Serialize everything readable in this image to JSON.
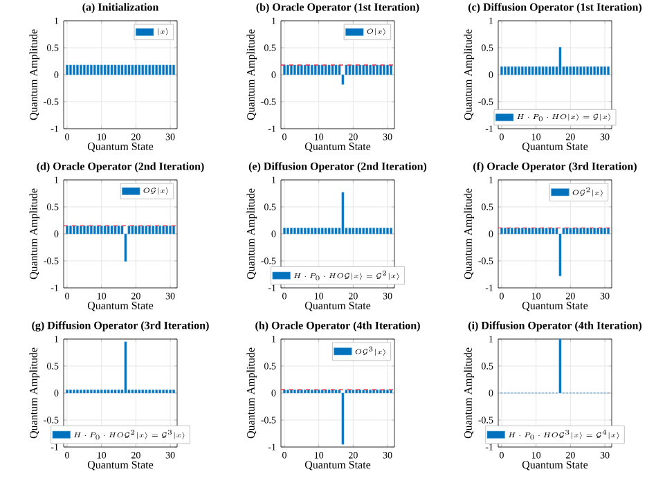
{
  "chart_data": [
    {
      "type": "bar",
      "title": "(a) Initialization",
      "xlabel": "Quantum State",
      "ylabel": "Quantum Amplitude",
      "x": [
        0,
        1,
        2,
        3,
        4,
        5,
        6,
        7,
        8,
        9,
        10,
        11,
        12,
        13,
        14,
        15,
        16,
        17,
        18,
        19,
        20,
        21,
        22,
        23,
        24,
        25,
        26,
        27,
        28,
        29,
        30,
        31
      ],
      "xlim": [
        -1,
        32
      ],
      "xticks": [
        0,
        10,
        20,
        30
      ],
      "ylim": [
        -1,
        1
      ],
      "yticks": [
        -1,
        -0.5,
        0,
        0.5,
        1
      ],
      "grid": true,
      "legend": "top right",
      "series": [
        {
          "name": "|x\\rangle",
          "color": "#0072bd",
          "values": [
            0.18,
            0.18,
            0.18,
            0.18,
            0.18,
            0.18,
            0.18,
            0.18,
            0.18,
            0.18,
            0.18,
            0.18,
            0.18,
            0.18,
            0.18,
            0.18,
            0.18,
            0.18,
            0.18,
            0.18,
            0.18,
            0.18,
            0.18,
            0.18,
            0.18,
            0.18,
            0.18,
            0.18,
            0.18,
            0.18,
            0.18,
            0.18
          ]
        }
      ]
    },
    {
      "type": "bar",
      "title": "(b) Oracle Operator (1st Iteration)",
      "xlabel": "Quantum State",
      "ylabel": "Quantum Amplitude",
      "x": [
        0,
        1,
        2,
        3,
        4,
        5,
        6,
        7,
        8,
        9,
        10,
        11,
        12,
        13,
        14,
        15,
        16,
        17,
        18,
        19,
        20,
        21,
        22,
        23,
        24,
        25,
        26,
        27,
        28,
        29,
        30,
        31
      ],
      "xlim": [
        -1,
        32
      ],
      "xticks": [
        0,
        10,
        20,
        30
      ],
      "ylim": [
        -1,
        1
      ],
      "yticks": [
        -1,
        -0.5,
        0,
        0.5,
        1
      ],
      "grid": true,
      "legend": "top right",
      "ref_lines": [
        {
          "axis": "y",
          "value": 0.18,
          "color": "#e8344a",
          "line_style": "dashed"
        }
      ],
      "series": [
        {
          "name": "O|x\\rangle",
          "color": "#0072bd",
          "values": [
            0.18,
            0.18,
            0.18,
            0.18,
            0.18,
            0.18,
            0.18,
            0.18,
            0.18,
            0.18,
            0.18,
            0.18,
            0.18,
            0.18,
            0.18,
            0.18,
            0.18,
            -0.18,
            0.18,
            0.18,
            0.18,
            0.18,
            0.18,
            0.18,
            0.18,
            0.18,
            0.18,
            0.18,
            0.18,
            0.18,
            0.18,
            0.18
          ]
        }
      ]
    },
    {
      "type": "bar",
      "title": "(c) Diffusion Operator (1st Iteration)",
      "xlabel": "Quantum State",
      "ylabel": "Quantum Amplitude",
      "x": [
        0,
        1,
        2,
        3,
        4,
        5,
        6,
        7,
        8,
        9,
        10,
        11,
        12,
        13,
        14,
        15,
        16,
        17,
        18,
        19,
        20,
        21,
        22,
        23,
        24,
        25,
        26,
        27,
        28,
        29,
        30,
        31
      ],
      "xlim": [
        -1,
        32
      ],
      "xticks": [
        0,
        10,
        20,
        30
      ],
      "ylim": [
        -1,
        1
      ],
      "yticks": [
        -1,
        -0.5,
        0,
        0.5,
        1
      ],
      "grid": true,
      "legend": "bottom",
      "series": [
        {
          "name": "H\\cdot P_0\\cdot HO|x\\rangle = \\mathcal{G}|x\\rangle",
          "color": "#0072bd",
          "values": [
            0.15,
            0.15,
            0.15,
            0.15,
            0.15,
            0.15,
            0.15,
            0.15,
            0.15,
            0.15,
            0.15,
            0.15,
            0.15,
            0.15,
            0.15,
            0.15,
            0.15,
            0.51,
            0.15,
            0.15,
            0.15,
            0.15,
            0.15,
            0.15,
            0.15,
            0.15,
            0.15,
            0.15,
            0.15,
            0.15,
            0.15,
            0.15
          ]
        }
      ]
    },
    {
      "type": "bar",
      "title": "(d) Oracle Operator (2nd Iteration)",
      "xlabel": "Quantum State",
      "ylabel": "Quantum Amplitude",
      "x": [
        0,
        1,
        2,
        3,
        4,
        5,
        6,
        7,
        8,
        9,
        10,
        11,
        12,
        13,
        14,
        15,
        16,
        17,
        18,
        19,
        20,
        21,
        22,
        23,
        24,
        25,
        26,
        27,
        28,
        29,
        30,
        31
      ],
      "xlim": [
        -1,
        32
      ],
      "xticks": [
        0,
        10,
        20,
        30
      ],
      "ylim": [
        -1,
        1
      ],
      "yticks": [
        -1,
        -0.5,
        0,
        0.5,
        1
      ],
      "grid": true,
      "legend": "top right",
      "ref_lines": [
        {
          "axis": "y",
          "value": 0.15,
          "color": "#e8344a",
          "line_style": "dashed"
        }
      ],
      "series": [
        {
          "name": "O\\mathcal{G}|x\\rangle",
          "color": "#0072bd",
          "values": [
            0.15,
            0.15,
            0.15,
            0.15,
            0.15,
            0.15,
            0.15,
            0.15,
            0.15,
            0.15,
            0.15,
            0.15,
            0.15,
            0.15,
            0.15,
            0.15,
            0.15,
            -0.51,
            0.15,
            0.15,
            0.15,
            0.15,
            0.15,
            0.15,
            0.15,
            0.15,
            0.15,
            0.15,
            0.15,
            0.15,
            0.15,
            0.15
          ]
        }
      ]
    },
    {
      "type": "bar",
      "title": "(e) Diffusion Operator (2nd Iteration)",
      "xlabel": "Quantum State",
      "ylabel": "Quantum Amplitude",
      "x": [
        0,
        1,
        2,
        3,
        4,
        5,
        6,
        7,
        8,
        9,
        10,
        11,
        12,
        13,
        14,
        15,
        16,
        17,
        18,
        19,
        20,
        21,
        22,
        23,
        24,
        25,
        26,
        27,
        28,
        29,
        30,
        31
      ],
      "xlim": [
        -1,
        32
      ],
      "xticks": [
        0,
        10,
        20,
        30
      ],
      "ylim": [
        -1,
        1
      ],
      "yticks": [
        -1,
        -0.5,
        0,
        0.5,
        1
      ],
      "grid": true,
      "legend": "bottom",
      "series": [
        {
          "name": "H\\cdot P_0\\cdot HO\\mathcal{G}|x\\rangle = \\mathcal{G}^2|x\\rangle",
          "color": "#0072bd",
          "values": [
            0.11,
            0.11,
            0.11,
            0.11,
            0.11,
            0.11,
            0.11,
            0.11,
            0.11,
            0.11,
            0.11,
            0.11,
            0.11,
            0.11,
            0.11,
            0.11,
            0.11,
            0.77,
            0.11,
            0.11,
            0.11,
            0.11,
            0.11,
            0.11,
            0.11,
            0.11,
            0.11,
            0.11,
            0.11,
            0.11,
            0.11,
            0.11
          ]
        }
      ]
    },
    {
      "type": "bar",
      "title": "(f) Oracle Operator (3rd Iteration)",
      "xlabel": "Quantum State",
      "ylabel": "Quantum Amplitude",
      "x": [
        0,
        1,
        2,
        3,
        4,
        5,
        6,
        7,
        8,
        9,
        10,
        11,
        12,
        13,
        14,
        15,
        16,
        17,
        18,
        19,
        20,
        21,
        22,
        23,
        24,
        25,
        26,
        27,
        28,
        29,
        30,
        31
      ],
      "xlim": [
        -1,
        32
      ],
      "xticks": [
        0,
        10,
        20,
        30
      ],
      "ylim": [
        -1,
        1
      ],
      "yticks": [
        -1,
        -0.5,
        0,
        0.5,
        1
      ],
      "grid": true,
      "legend": "top right",
      "ref_lines": [
        {
          "axis": "y",
          "value": 0.11,
          "color": "#e8344a",
          "line_style": "dashed"
        }
      ],
      "series": [
        {
          "name": "O\\mathcal{G}^2|x\\rangle",
          "color": "#0072bd",
          "values": [
            0.11,
            0.11,
            0.11,
            0.11,
            0.11,
            0.11,
            0.11,
            0.11,
            0.11,
            0.11,
            0.11,
            0.11,
            0.11,
            0.11,
            0.11,
            0.11,
            0.11,
            -0.78,
            0.11,
            0.11,
            0.11,
            0.11,
            0.11,
            0.11,
            0.11,
            0.11,
            0.11,
            0.11,
            0.11,
            0.11,
            0.11,
            0.11
          ]
        }
      ]
    },
    {
      "type": "bar",
      "title": "(g) Diffusion Operator (3rd Iteration)",
      "xlabel": "Quantum State",
      "ylabel": "Quantum Amplitude",
      "x": [
        0,
        1,
        2,
        3,
        4,
        5,
        6,
        7,
        8,
        9,
        10,
        11,
        12,
        13,
        14,
        15,
        16,
        17,
        18,
        19,
        20,
        21,
        22,
        23,
        24,
        25,
        26,
        27,
        28,
        29,
        30,
        31
      ],
      "xlim": [
        -1,
        32
      ],
      "xticks": [
        0,
        10,
        20,
        30
      ],
      "ylim": [
        -1,
        1
      ],
      "yticks": [
        -1,
        -0.5,
        0,
        0.5,
        1
      ],
      "grid": true,
      "legend": "bottom",
      "series": [
        {
          "name": "H\\cdot P_0\\cdot HO\\mathcal{G}^2|x\\rangle = \\mathcal{G}^3|x\\rangle",
          "color": "#0072bd",
          "values": [
            0.06,
            0.06,
            0.06,
            0.06,
            0.06,
            0.06,
            0.06,
            0.06,
            0.06,
            0.06,
            0.06,
            0.06,
            0.06,
            0.06,
            0.06,
            0.06,
            0.06,
            0.95,
            0.06,
            0.06,
            0.06,
            0.06,
            0.06,
            0.06,
            0.06,
            0.06,
            0.06,
            0.06,
            0.06,
            0.06,
            0.06,
            0.06
          ]
        }
      ]
    },
    {
      "type": "bar",
      "title": "(h) Oracle Operator (4th Iteration)",
      "xlabel": "Quantum State",
      "ylabel": "Quantum Amplitude",
      "x": [
        0,
        1,
        2,
        3,
        4,
        5,
        6,
        7,
        8,
        9,
        10,
        11,
        12,
        13,
        14,
        15,
        16,
        17,
        18,
        19,
        20,
        21,
        22,
        23,
        24,
        25,
        26,
        27,
        28,
        29,
        30,
        31
      ],
      "xlim": [
        -1,
        32
      ],
      "xticks": [
        0,
        10,
        20,
        30
      ],
      "ylim": [
        -1,
        1
      ],
      "yticks": [
        -1,
        -0.5,
        0,
        0.5,
        1
      ],
      "grid": true,
      "legend": "top right",
      "ref_lines": [
        {
          "axis": "y",
          "value": 0.06,
          "color": "#e8344a",
          "line_style": "dashed"
        }
      ],
      "series": [
        {
          "name": "O\\mathcal{G}^3|x\\rangle",
          "color": "#0072bd",
          "values": [
            0.06,
            0.06,
            0.06,
            0.06,
            0.06,
            0.06,
            0.06,
            0.06,
            0.06,
            0.06,
            0.06,
            0.06,
            0.06,
            0.06,
            0.06,
            0.06,
            0.06,
            -0.95,
            0.06,
            0.06,
            0.06,
            0.06,
            0.06,
            0.06,
            0.06,
            0.06,
            0.06,
            0.06,
            0.06,
            0.06,
            0.06,
            0.06
          ]
        }
      ]
    },
    {
      "type": "bar",
      "title": "(i) Diffusion Operator (4th Iteration)",
      "xlabel": "Quantum State",
      "ylabel": "Quantum Amplitude",
      "x": [
        0,
        1,
        2,
        3,
        4,
        5,
        6,
        7,
        8,
        9,
        10,
        11,
        12,
        13,
        14,
        15,
        16,
        17,
        18,
        19,
        20,
        21,
        22,
        23,
        24,
        25,
        26,
        27,
        28,
        29,
        30,
        31
      ],
      "xlim": [
        -1,
        32
      ],
      "xticks": [
        0,
        10,
        20,
        30
      ],
      "ylim": [
        -1,
        1
      ],
      "yticks": [
        -1,
        -0.5,
        0,
        0.5,
        1
      ],
      "grid": true,
      "legend": "bottom",
      "series": [
        {
          "name": "H\\cdot P_0\\cdot HO\\mathcal{G}^3|x\\rangle = \\mathcal{G}^4|x\\rangle",
          "color": "#0072bd",
          "values": [
            0,
            0,
            0,
            0,
            0,
            0,
            0,
            0,
            0,
            0,
            0,
            0,
            0,
            0,
            0,
            0,
            0,
            1,
            0,
            0,
            0,
            0,
            0,
            0,
            0,
            0,
            0,
            0,
            0,
            0,
            0,
            0
          ]
        }
      ]
    }
  ]
}
